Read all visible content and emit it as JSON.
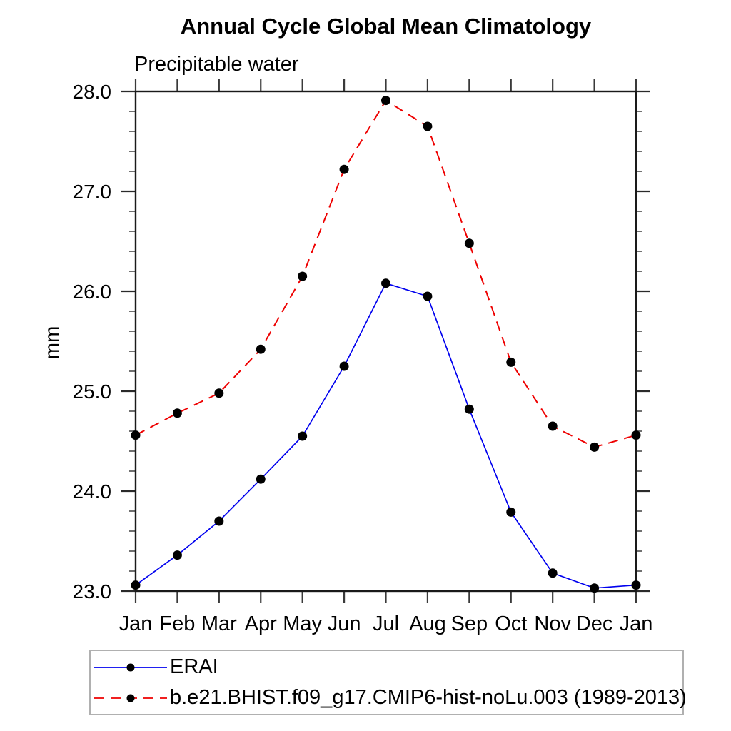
{
  "chart_data": {
    "type": "line",
    "title": "Annual Cycle Global Mean Climatology",
    "subtitle": "Precipitable water",
    "ylabel": "mm",
    "xlabel": "",
    "categories": [
      "Jan",
      "Feb",
      "Mar",
      "Apr",
      "May",
      "Jun",
      "Jul",
      "Aug",
      "Sep",
      "Oct",
      "Nov",
      "Dec",
      "Jan"
    ],
    "ylim": [
      23.0,
      28.0
    ],
    "ytick_labels": [
      "23.0",
      "24.0",
      "25.0",
      "26.0",
      "27.0",
      "28.0"
    ],
    "ytick_minor_step": 0.2,
    "grid": false,
    "legend_position": "bottom",
    "marker_color": "#000000",
    "series": [
      {
        "name": "ERAI",
        "color": "#0000ee",
        "dash": "solid",
        "marker": "circle",
        "values": [
          23.06,
          23.36,
          23.7,
          24.12,
          24.55,
          25.25,
          26.08,
          25.95,
          24.82,
          23.79,
          23.18,
          23.03,
          23.06
        ]
      },
      {
        "name": "b.e21.BHIST.f09_g17.CMIP6-hist-noLu.003 (1989-2013)",
        "color": "#ee0000",
        "dash": "dashed",
        "marker": "circle",
        "values": [
          24.56,
          24.78,
          24.98,
          25.42,
          26.15,
          27.22,
          27.91,
          27.65,
          26.48,
          25.29,
          24.65,
          24.44,
          24.56
        ]
      }
    ]
  }
}
